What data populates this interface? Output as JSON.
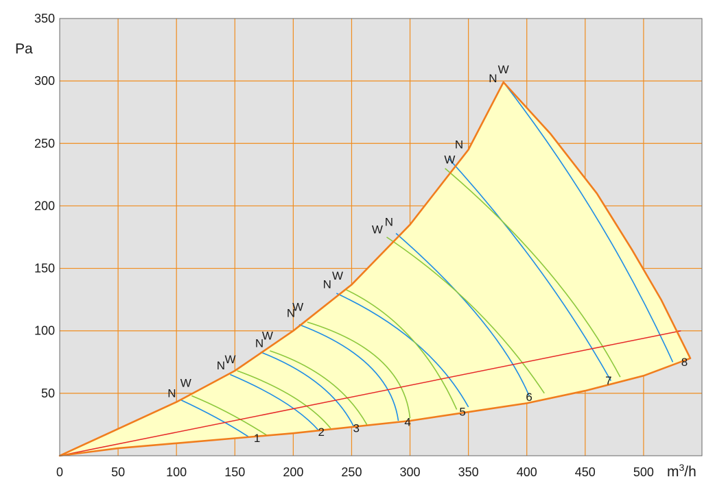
{
  "chart_data": {
    "type": "line",
    "xlabel": "m³/h",
    "ylabel": "Pa",
    "xlim": [
      0,
      550
    ],
    "ylim": [
      0,
      350
    ],
    "x_ticks": [
      "0",
      "50",
      "100",
      "150",
      "200",
      "250",
      "300",
      "350",
      "400",
      "450",
      "500"
    ],
    "y_ticks": [
      "50",
      "100",
      "150",
      "200",
      "250",
      "300",
      "350"
    ],
    "grid": true,
    "colors": {
      "background": "#e2e2e2",
      "grid": "#f08c1e",
      "envelope_fill": "#ffffc4",
      "envelope_border": "#f07d1e",
      "curve_N": "#1e8ce6",
      "curve_W": "#8cc83c",
      "system_line": "#e62828"
    },
    "envelope": {
      "upper_boundary": [
        [
          0,
          0
        ],
        [
          100,
          43
        ],
        [
          150,
          68
        ],
        [
          200,
          100
        ],
        [
          250,
          137
        ],
        [
          300,
          185
        ],
        [
          350,
          245
        ],
        [
          380,
          299
        ]
      ],
      "right_boundary": [
        [
          380,
          299
        ],
        [
          420,
          258
        ],
        [
          460,
          210
        ],
        [
          490,
          165
        ],
        [
          515,
          125
        ],
        [
          540,
          78
        ]
      ],
      "lower_boundary": [
        [
          540,
          78
        ],
        [
          500,
          64
        ],
        [
          450,
          52
        ],
        [
          400,
          42
        ],
        [
          350,
          35
        ],
        [
          300,
          28
        ],
        [
          250,
          23
        ],
        [
          200,
          18
        ],
        [
          150,
          14
        ],
        [
          100,
          10
        ],
        [
          50,
          6
        ],
        [
          0,
          0
        ]
      ]
    },
    "system_line": [
      [
        0,
        0
      ],
      [
        532,
        100
      ]
    ],
    "series": [
      {
        "name": "N",
        "curve": "1",
        "points": [
          [
            103,
            45
          ],
          [
            135,
            30
          ],
          [
            162,
            15
          ]
        ]
      },
      {
        "name": "W",
        "curve": "1",
        "points": [
          [
            113,
            48
          ],
          [
            145,
            34
          ],
          [
            178,
            16
          ]
        ]
      },
      {
        "name": "N",
        "curve": "2",
        "points": [
          [
            146,
            65
          ],
          [
            192,
            43
          ],
          [
            222,
            20
          ]
        ]
      },
      {
        "name": "W",
        "curve": "2",
        "points": [
          [
            152,
            68
          ],
          [
            200,
            47
          ],
          [
            232,
            22
          ]
        ]
      },
      {
        "name": "N",
        "curve": "3",
        "points": [
          [
            172,
            83
          ],
          [
            222,
            57
          ],
          [
            252,
            23
          ]
        ]
      },
      {
        "name": "W",
        "curve": "3",
        "points": [
          [
            180,
            84
          ],
          [
            230,
            60
          ],
          [
            263,
            25
          ]
        ]
      },
      {
        "name": "N",
        "curve": "4",
        "points": [
          [
            205,
            105
          ],
          [
            265,
            72
          ],
          [
            290,
            28
          ]
        ]
      },
      {
        "name": "W",
        "curve": "4",
        "points": [
          [
            212,
            107
          ],
          [
            275,
            76
          ],
          [
            300,
            30
          ]
        ]
      },
      {
        "name": "N",
        "curve": "5",
        "points": [
          [
            237,
            130
          ],
          [
            305,
            90
          ],
          [
            350,
            39
          ]
        ]
      },
      {
        "name": "W",
        "curve": "5",
        "points": [
          [
            245,
            133
          ],
          [
            300,
            95
          ],
          [
            340,
            37
          ]
        ]
      },
      {
        "name": "N",
        "curve": "6",
        "points": [
          [
            288,
            178
          ],
          [
            360,
            110
          ],
          [
            402,
            48
          ]
        ]
      },
      {
        "name": "W",
        "curve": "6",
        "points": [
          [
            280,
            175
          ],
          [
            355,
            118
          ],
          [
            415,
            50
          ]
        ]
      },
      {
        "name": "N",
        "curve": "7",
        "points": [
          [
            333,
            238
          ],
          [
            410,
            150
          ],
          [
            472,
            60
          ]
        ]
      },
      {
        "name": "W",
        "curve": "7",
        "points": [
          [
            330,
            230
          ],
          [
            418,
            148
          ],
          [
            480,
            63
          ]
        ]
      },
      {
        "name": "N",
        "curve": "8",
        "points": [
          [
            380,
            299
          ],
          [
            460,
            190
          ],
          [
            525,
            75
          ]
        ]
      }
    ],
    "curve_labels": [
      {
        "text": "1",
        "x": 169,
        "y": 11
      },
      {
        "text": "2",
        "x": 224,
        "y": 16
      },
      {
        "text": "3",
        "x": 254,
        "y": 19
      },
      {
        "text": "4",
        "x": 298,
        "y": 24
      },
      {
        "text": "5",
        "x": 345,
        "y": 32
      },
      {
        "text": "6",
        "x": 402,
        "y": 44
      },
      {
        "text": "7",
        "x": 470,
        "y": 57
      },
      {
        "text": "8",
        "x": 535,
        "y": 72
      }
    ],
    "nw_labels": [
      {
        "text": "N",
        "x": 96,
        "y": 47
      },
      {
        "text": "W",
        "x": 108,
        "y": 55
      },
      {
        "text": "N",
        "x": 138,
        "y": 69
      },
      {
        "text": "W",
        "x": 146,
        "y": 74
      },
      {
        "text": "N",
        "x": 171,
        "y": 87
      },
      {
        "text": "W",
        "x": 178,
        "y": 93
      },
      {
        "text": "N",
        "x": 198,
        "y": 111
      },
      {
        "text": "W",
        "x": 204,
        "y": 116
      },
      {
        "text": "N",
        "x": 229,
        "y": 134
      },
      {
        "text": "W",
        "x": 238,
        "y": 141
      },
      {
        "text": "W",
        "x": 272,
        "y": 178
      },
      {
        "text": "N",
        "x": 282,
        "y": 184
      },
      {
        "text": "W",
        "x": 334,
        "y": 234
      },
      {
        "text": "N",
        "x": 342,
        "y": 246
      },
      {
        "text": "N",
        "x": 371,
        "y": 299
      },
      {
        "text": "W",
        "x": 380,
        "y": 306
      }
    ]
  }
}
